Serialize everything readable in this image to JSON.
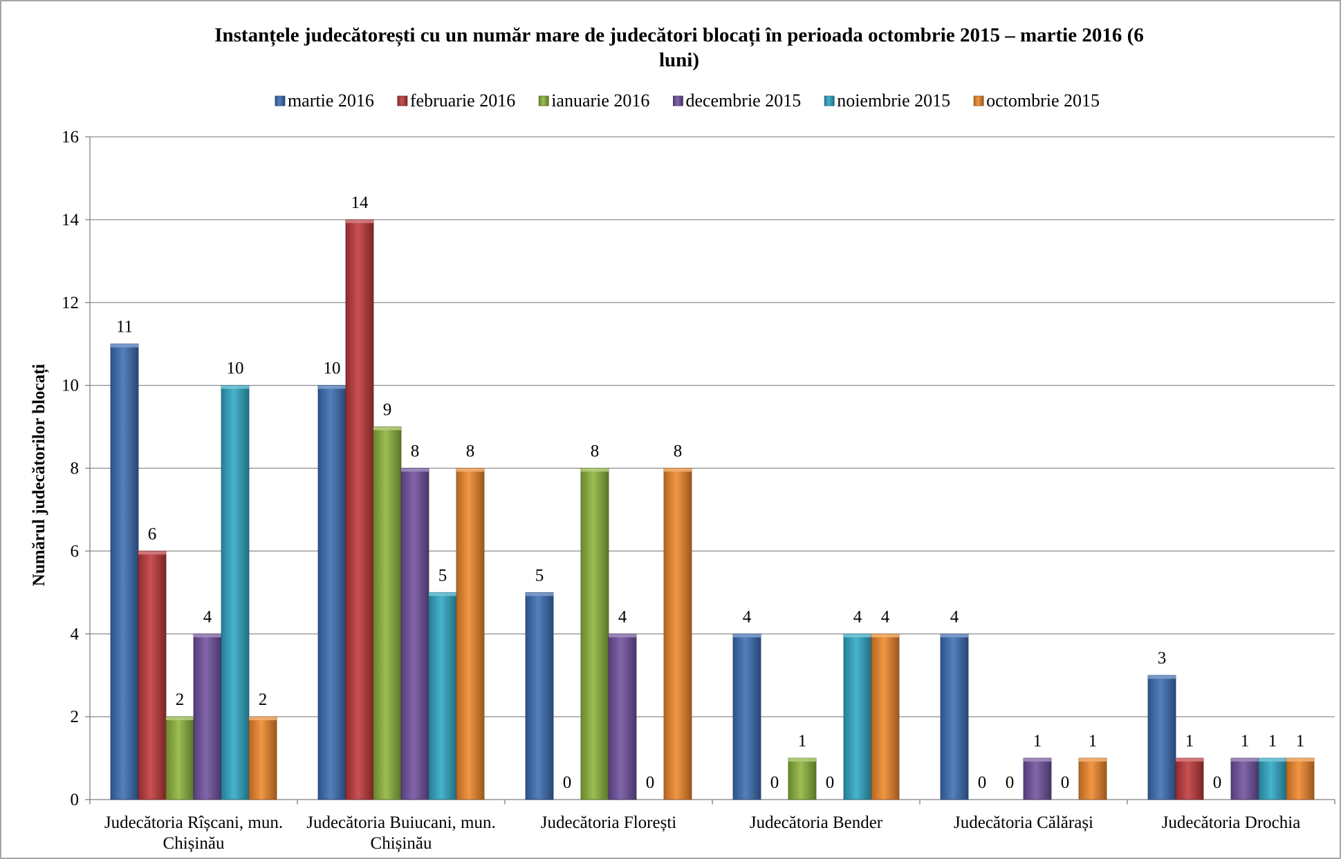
{
  "chart_data": {
    "type": "bar",
    "title_lines": [
      "Instanțele judecătorești cu un număr mare de judecători blocați în perioada octombrie 2015 – martie 2016 (6",
      "luni)"
    ],
    "ylabel": "Numărul judecătorilor blocați",
    "xlabel": "",
    "ylim": [
      0,
      16
    ],
    "yticks": [
      0,
      2,
      4,
      6,
      8,
      10,
      12,
      14,
      16
    ],
    "grid": true,
    "legend_position": "top",
    "categories": [
      [
        "Judecătoria Rîșcani, mun.",
        "Chișinău"
      ],
      [
        "Judecătoria Buiucani, mun.",
        "Chișinău"
      ],
      [
        "Judecătoria Florești"
      ],
      [
        "Judecătoria Bender"
      ],
      [
        "Judecătoria Călărași"
      ],
      [
        "Judecătoria Drochia"
      ]
    ],
    "series": [
      {
        "name": "martie 2016",
        "color": "#3d6fb5",
        "values": [
          11,
          10,
          5,
          4,
          4,
          3
        ]
      },
      {
        "name": "februarie 2016",
        "color": "#c0393b",
        "values": [
          6,
          14,
          0,
          0,
          0,
          1
        ]
      },
      {
        "name": "ianuarie 2016",
        "color": "#8db53c",
        "values": [
          2,
          9,
          8,
          1,
          0,
          0
        ]
      },
      {
        "name": "decembrie 2015",
        "color": "#7151a0",
        "values": [
          4,
          8,
          4,
          0,
          1,
          1
        ]
      },
      {
        "name": "noiembrie 2015",
        "color": "#2fa9c6",
        "values": [
          10,
          5,
          0,
          4,
          0,
          1
        ]
      },
      {
        "name": "octombrie 2015",
        "color": "#f0882b",
        "values": [
          2,
          8,
          8,
          4,
          1,
          1
        ]
      }
    ]
  }
}
